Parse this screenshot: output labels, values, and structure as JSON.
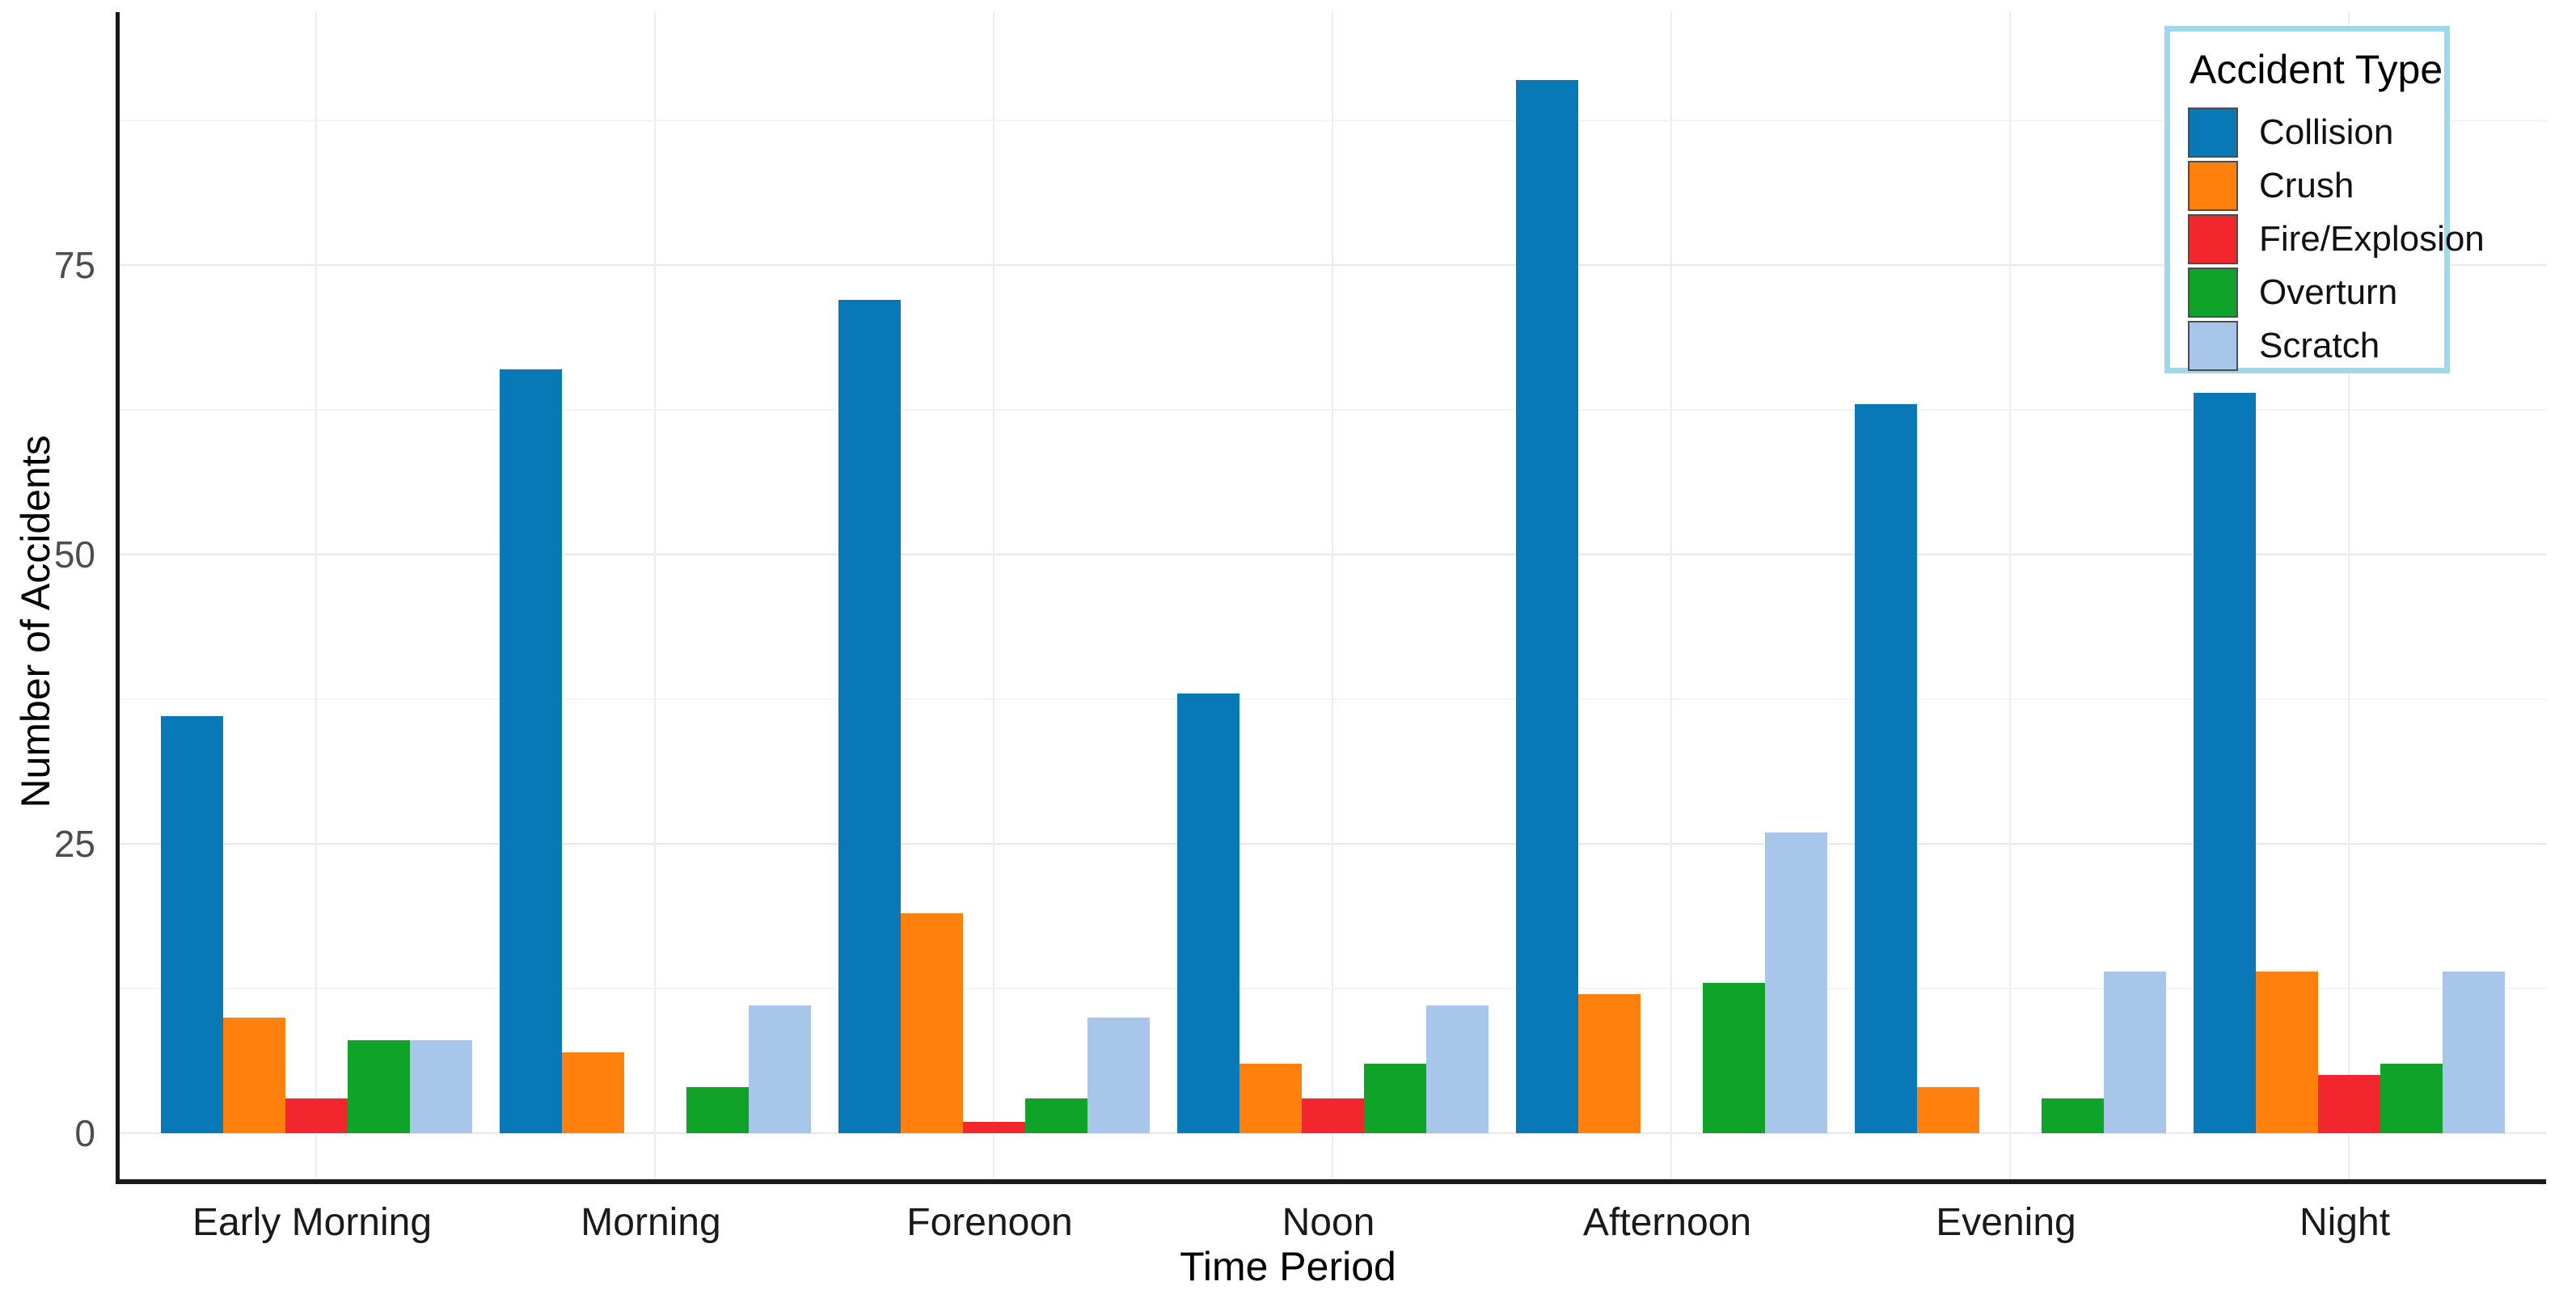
{
  "chart_data": {
    "type": "bar",
    "title": "",
    "xlabel": "Time Period",
    "ylabel": "Number of Accidents",
    "categories": [
      "Early Morning",
      "Morning",
      "Forenoon",
      "Noon",
      "Afternoon",
      "Evening",
      "Night"
    ],
    "series": [
      {
        "name": "Collision",
        "color": "#0878b6",
        "values": [
          36,
          66,
          72,
          38,
          91,
          63,
          64
        ]
      },
      {
        "name": "Crush",
        "color": "#ff800d",
        "values": [
          10,
          7,
          19,
          6,
          12,
          4,
          14
        ]
      },
      {
        "name": "Fire/Explosion",
        "color": "#f2262d",
        "values": [
          3,
          0,
          1,
          3,
          0,
          0,
          5
        ]
      },
      {
        "name": "Overturn",
        "color": "#10a32a",
        "values": [
          8,
          4,
          3,
          6,
          13,
          3,
          6
        ]
      },
      {
        "name": "Scratch",
        "color": "#a8c6e9",
        "values": [
          8,
          11,
          10,
          11,
          26,
          14,
          14
        ]
      }
    ],
    "ylim": [
      0,
      96
    ],
    "yticks": [
      0,
      25,
      50,
      75
    ],
    "minor_yticks": [
      12.5,
      37.5,
      62.5,
      87.5
    ],
    "grid": true,
    "legend_position": "top-right-inside"
  },
  "legend": {
    "title": "Accident Type",
    "border_color": "#9fd8ea"
  },
  "axes": {
    "ytick_labels": [
      "0",
      "25",
      "50",
      "75"
    ],
    "spine_color": "#1a1a1a"
  }
}
